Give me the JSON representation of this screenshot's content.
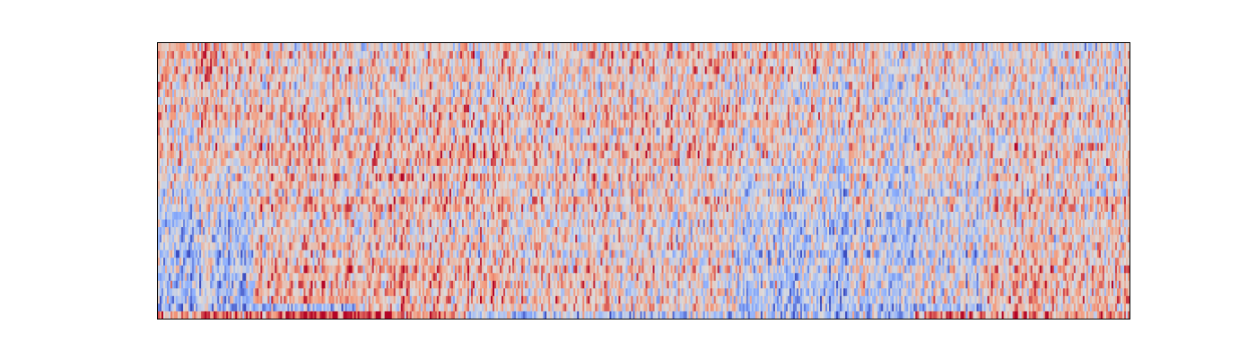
{
  "chart_data": {
    "type": "heatmap",
    "title": "",
    "xlabel": "",
    "ylabel": "",
    "axes_visible": false,
    "colormap": "coolwarm",
    "colormap_stops": [
      "#3b4cc0",
      "#8db0fe",
      "#dddcdc",
      "#f49a7b",
      "#b40426"
    ],
    "value_range": [
      -1,
      1
    ],
    "rows": 36,
    "cols": 540,
    "row_order": "bottom-to-top",
    "row_bands": [
      {
        "band": "row-0",
        "mean": 0.55
      },
      {
        "band": "row-1",
        "mean": -0.35
      },
      {
        "band": "rows-2-6",
        "mean": 0.25
      },
      {
        "band": "rows-7-16",
        "mean": 0.05
      },
      {
        "band": "rows-17-35",
        "mean": 0.1
      }
    ],
    "column_segments": [
      {
        "start": 0,
        "end": 54,
        "low_rows_mean": -0.35,
        "high_rows_mean": 0.25
      },
      {
        "start": 54,
        "end": 150,
        "low_rows_mean": 0.3,
        "high_rows_mean": 0.05
      },
      {
        "start": 150,
        "end": 250,
        "low_rows_mean": 0.25,
        "high_rows_mean": 0.1
      },
      {
        "start": 250,
        "end": 320,
        "low_rows_mean": 0.1,
        "high_rows_mean": 0.2
      },
      {
        "start": 320,
        "end": 385,
        "low_rows_mean": -0.25,
        "high_rows_mean": 0.15
      },
      {
        "start": 385,
        "end": 460,
        "low_rows_mean": -0.1,
        "high_rows_mean": 0.05
      },
      {
        "start": 460,
        "end": 540,
        "low_rows_mean": 0.3,
        "high_rows_mean": -0.05
      }
    ]
  }
}
